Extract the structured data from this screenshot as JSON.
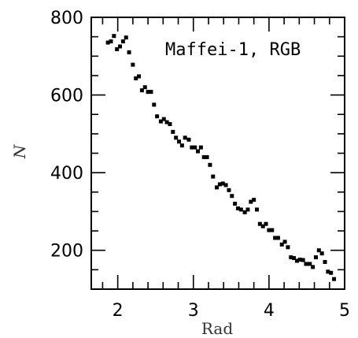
{
  "chart_data": {
    "type": "scatter",
    "title": "",
    "annotation": "Maffei-1, RGB",
    "xlabel": "Rad",
    "ylabel": "N",
    "xlim": [
      1.65,
      5.0
    ],
    "ylim": [
      100,
      800
    ],
    "xticks": [
      2,
      3,
      4,
      5
    ],
    "xtick_labels": [
      "2",
      "3",
      "4",
      "5"
    ],
    "yticks": [
      200,
      400,
      600,
      800
    ],
    "ytick_labels": [
      "200",
      "400",
      "600",
      "800"
    ],
    "grid": false,
    "marker_color": "#000000",
    "series": [
      {
        "x": [
          1.87,
          1.91,
          1.95,
          1.99,
          2.03,
          2.07,
          2.11,
          2.15,
          2.2,
          2.24,
          2.28,
          2.32,
          2.36,
          2.4,
          2.44,
          2.48,
          2.52,
          2.57,
          2.61,
          2.65,
          2.69,
          2.73,
          2.77,
          2.81,
          2.85,
          2.89,
          2.94,
          2.98,
          3.02,
          3.06,
          3.1,
          3.14,
          3.18,
          3.22,
          3.26,
          3.31,
          3.35,
          3.39,
          3.43,
          3.47,
          3.51,
          3.55,
          3.59,
          3.63,
          3.68,
          3.72,
          3.76,
          3.8,
          3.84,
          3.88,
          3.92,
          3.96,
          4.0,
          4.04,
          4.08,
          4.12,
          4.17,
          4.21,
          4.25,
          4.29,
          4.33,
          4.37,
          4.41,
          4.45,
          4.49,
          4.54,
          4.58,
          4.62,
          4.66,
          4.7,
          4.74,
          4.78,
          4.82,
          4.86
        ],
        "y": [
          735,
          738,
          752,
          718,
          725,
          738,
          748,
          710,
          678,
          643,
          648,
          612,
          620,
          608,
          608,
          575,
          545,
          532,
          538,
          530,
          525,
          505,
          490,
          480,
          470,
          490,
          485,
          465,
          465,
          455,
          465,
          440,
          440,
          420,
          390,
          362,
          370,
          372,
          368,
          355,
          340,
          320,
          308,
          305,
          298,
          305,
          325,
          330,
          305,
          268,
          262,
          268,
          252,
          252,
          232,
          232,
          215,
          222,
          208,
          182,
          180,
          173,
          176,
          175,
          165,
          165,
          157,
          182,
          200,
          192,
          170,
          145,
          142,
          126
        ]
      }
    ]
  }
}
